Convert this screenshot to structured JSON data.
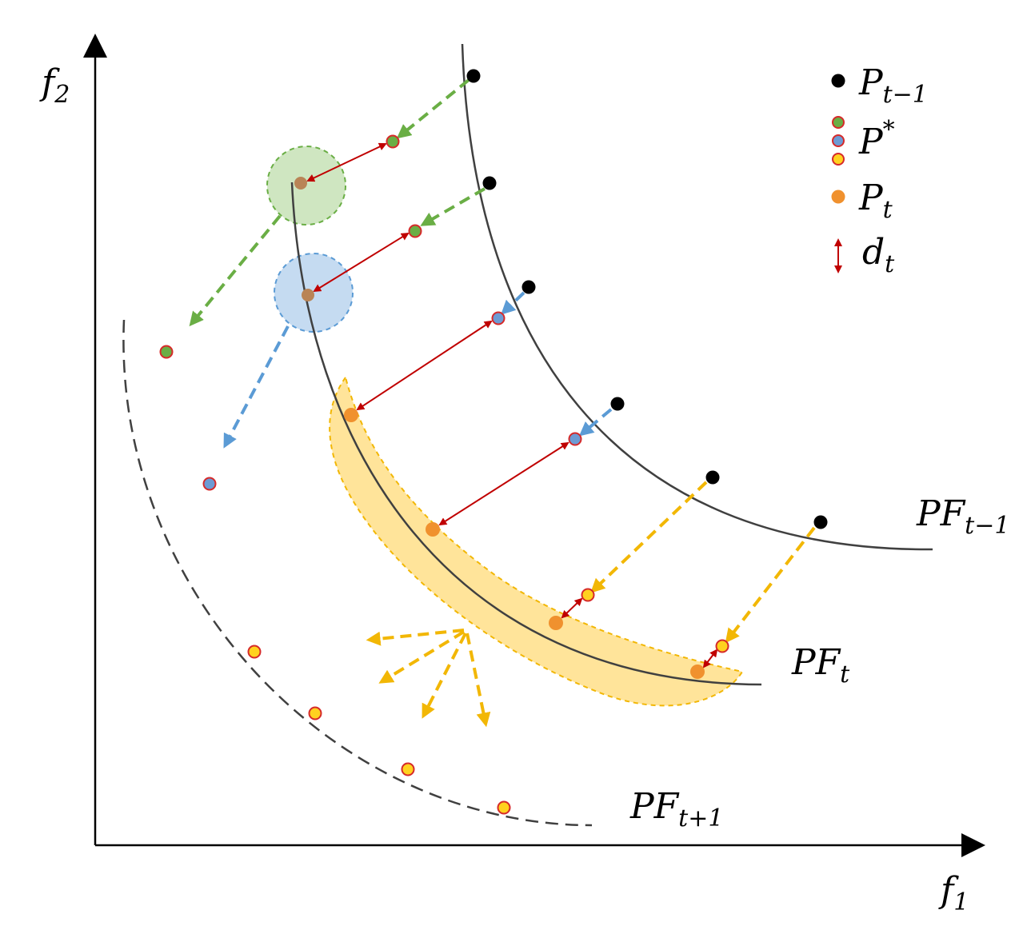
{
  "axes": {
    "x_label": {
      "main": "f",
      "sub": "1"
    },
    "y_label": {
      "main": "f",
      "sub": "2"
    }
  },
  "fronts": {
    "prev": {
      "main": "PF",
      "sub": "t−1"
    },
    "curr": {
      "main": "PF",
      "sub": "t"
    },
    "next": {
      "main": "PF",
      "sub": "t+1"
    }
  },
  "legend": {
    "prev_population": {
      "main": "P",
      "sub": "t−1"
    },
    "predicted": {
      "main": "P",
      "sup": "*"
    },
    "current_population": {
      "main": "P",
      "sub": "t"
    },
    "distance": {
      "main": "d",
      "sub": "t"
    }
  },
  "colors": {
    "black_point": "#000000",
    "orange_point": "#F0912E",
    "brown_point": "#B98456",
    "green_fill": "#6AAE45",
    "blue_fill": "#6D9BD4",
    "yellow_fill": "#FFD21F",
    "red_outline": "#D62A2A",
    "distance_arrow": "#C00000",
    "green_dash": "#6AAE45",
    "blue_dash": "#5B9BD5",
    "yellow_dash": "#F2B705",
    "green_region": "#CFE6C1",
    "blue_region": "#C5DBF1",
    "yellow_region": "#FFE49A",
    "curve": "#404040"
  }
}
